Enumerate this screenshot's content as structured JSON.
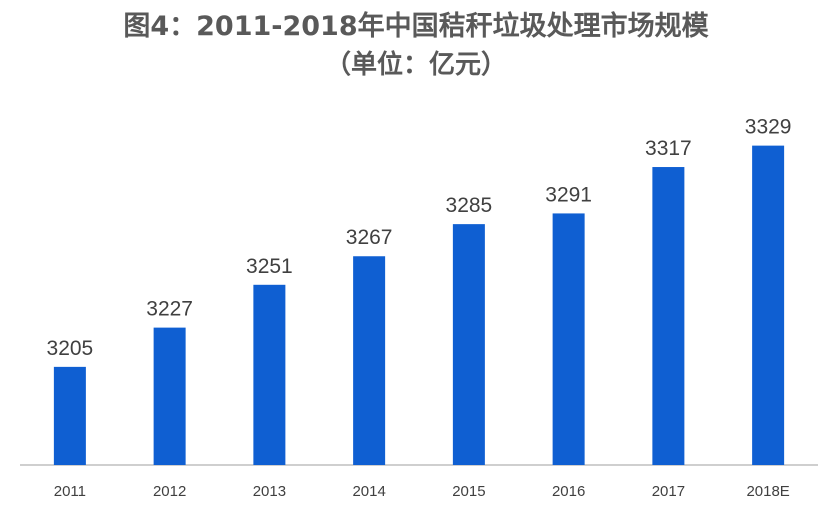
{
  "chart_data": {
    "type": "bar",
    "title": "图4：2011-2018年中国秸秆垃圾处理市场规模",
    "subtitle": "（单位：亿元）",
    "categories": [
      "2011",
      "2012",
      "2013",
      "2014",
      "2015",
      "2016",
      "2017",
      "2018E"
    ],
    "values": [
      3205,
      3227,
      3251,
      3267,
      3285,
      3291,
      3317,
      3329
    ],
    "data_labels": [
      "3205",
      "3227",
      "3251",
      "3267",
      "3285",
      "3291",
      "3317",
      "3329"
    ],
    "xlabel": "",
    "ylabel": "",
    "ylim": [
      3150,
      3340
    ],
    "grid": false,
    "legend": "none",
    "bar_color": "#0F5FD2",
    "axis_color": "#BFBFBF"
  }
}
